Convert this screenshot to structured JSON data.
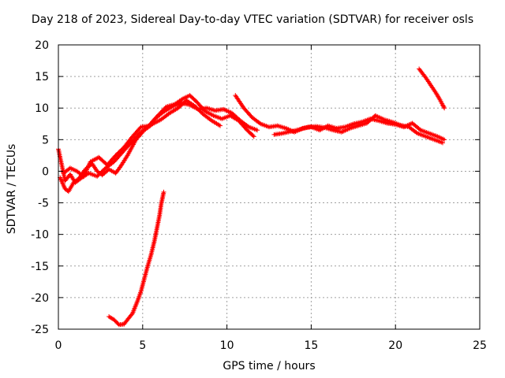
{
  "chart_data": {
    "type": "scatter",
    "title": "Day 218 of 2023, Sidereal Day-to-day VTEC variation (SDTVAR) for receiver osls",
    "xlabel": "GPS time / hours",
    "ylabel": "SDTVAR / TECUs",
    "xlim": [
      0,
      25
    ],
    "ylim": [
      -25,
      20
    ],
    "xticks": [
      0,
      5,
      10,
      15,
      20,
      25
    ],
    "yticks": [
      -25,
      -20,
      -15,
      -10,
      -5,
      0,
      5,
      10,
      15,
      20
    ],
    "grid": true,
    "marker": "+",
    "series_color": "#ff0000",
    "series": [
      {
        "name": "track-early-1",
        "points": [
          [
            0.0,
            3.5
          ],
          [
            0.2,
            1.0
          ],
          [
            0.4,
            -1.5
          ],
          [
            0.7,
            -0.5
          ],
          [
            1.0,
            -1.8
          ],
          [
            1.4,
            -1.0
          ],
          [
            1.8,
            -0.3
          ],
          [
            2.3,
            -0.8
          ],
          [
            2.8,
            0.5
          ],
          [
            3.3,
            1.5
          ],
          [
            3.8,
            3.0
          ],
          [
            4.3,
            4.5
          ],
          [
            4.8,
            6.0
          ],
          [
            5.3,
            7.0
          ],
          [
            5.8,
            8.5
          ],
          [
            6.3,
            9.5
          ],
          [
            6.8,
            10.3
          ],
          [
            7.3,
            10.8
          ],
          [
            7.8,
            10.5
          ],
          [
            8.3,
            9.8
          ],
          [
            8.8,
            10.0
          ],
          [
            9.3,
            9.6
          ],
          [
            9.8,
            9.8
          ],
          [
            10.3,
            9.2
          ],
          [
            10.8,
            8.0
          ],
          [
            11.3,
            7.0
          ],
          [
            11.8,
            6.5
          ]
        ]
      },
      {
        "name": "track-early-2",
        "points": [
          [
            0.1,
            -1.0
          ],
          [
            0.4,
            -2.8
          ],
          [
            0.6,
            -3.2
          ],
          [
            0.9,
            -1.8
          ],
          [
            1.2,
            -1.2
          ],
          [
            1.6,
            0.3
          ],
          [
            2.0,
            1.2
          ],
          [
            2.3,
            0.0
          ],
          [
            2.6,
            -0.6
          ],
          [
            3.0,
            0.3
          ],
          [
            3.4,
            -0.3
          ],
          [
            3.7,
            0.8
          ],
          [
            4.1,
            2.5
          ],
          [
            4.6,
            5.0
          ],
          [
            5.1,
            6.5
          ],
          [
            5.6,
            7.5
          ],
          [
            6.1,
            8.2
          ],
          [
            6.6,
            9.2
          ],
          [
            7.1,
            10.0
          ],
          [
            7.6,
            11.2
          ],
          [
            8.1,
            10.3
          ],
          [
            8.6,
            9.0
          ],
          [
            9.1,
            8.0
          ],
          [
            9.6,
            7.2
          ]
        ]
      },
      {
        "name": "track-early-3",
        "points": [
          [
            0.3,
            -0.3
          ],
          [
            0.7,
            0.5
          ],
          [
            1.1,
            0.0
          ],
          [
            1.5,
            -0.8
          ],
          [
            1.9,
            1.5
          ],
          [
            2.4,
            2.2
          ],
          [
            2.9,
            1.0
          ],
          [
            3.4,
            2.5
          ],
          [
            3.9,
            3.8
          ],
          [
            4.4,
            5.5
          ],
          [
            4.9,
            7.0
          ],
          [
            5.4,
            7.2
          ],
          [
            5.9,
            8.8
          ],
          [
            6.4,
            10.2
          ],
          [
            6.9,
            10.6
          ],
          [
            7.4,
            11.5
          ],
          [
            7.8,
            12.0
          ],
          [
            8.2,
            11.0
          ],
          [
            8.7,
            9.5
          ],
          [
            9.2,
            8.8
          ],
          [
            9.7,
            8.3
          ],
          [
            10.2,
            8.8
          ],
          [
            10.7,
            8.0
          ],
          [
            11.2,
            6.5
          ],
          [
            11.6,
            5.5
          ]
        ]
      },
      {
        "name": "track-midday",
        "points": [
          [
            10.5,
            12.0
          ],
          [
            11.0,
            10.0
          ],
          [
            11.5,
            8.5
          ],
          [
            12.0,
            7.5
          ],
          [
            12.5,
            7.0
          ],
          [
            13.0,
            7.2
          ],
          [
            13.5,
            6.8
          ],
          [
            14.0,
            6.2
          ],
          [
            14.5,
            6.8
          ],
          [
            15.0,
            7.0
          ],
          [
            15.5,
            6.5
          ],
          [
            16.0,
            7.2
          ],
          [
            16.5,
            6.8
          ],
          [
            17.0,
            7.0
          ],
          [
            17.5,
            7.5
          ],
          [
            18.0,
            7.8
          ],
          [
            18.5,
            8.3
          ],
          [
            19.0,
            8.0
          ],
          [
            19.5,
            7.6
          ],
          [
            20.0,
            7.4
          ],
          [
            20.5,
            7.0
          ],
          [
            21.0,
            7.6
          ],
          [
            21.5,
            6.5
          ],
          [
            22.0,
            6.0
          ],
          [
            22.5,
            5.5
          ],
          [
            22.9,
            5.0
          ]
        ]
      },
      {
        "name": "track-midday-2",
        "points": [
          [
            12.8,
            5.8
          ],
          [
            13.3,
            6.0
          ],
          [
            13.8,
            6.3
          ],
          [
            14.3,
            6.6
          ],
          [
            14.8,
            7.0
          ],
          [
            15.3,
            7.1
          ],
          [
            15.8,
            6.9
          ],
          [
            16.3,
            6.5
          ],
          [
            16.8,
            6.2
          ],
          [
            17.3,
            6.8
          ],
          [
            17.8,
            7.2
          ],
          [
            18.3,
            7.6
          ],
          [
            18.8,
            8.8
          ],
          [
            19.3,
            8.2
          ],
          [
            19.8,
            7.8
          ],
          [
            20.3,
            7.3
          ],
          [
            20.8,
            7.0
          ],
          [
            21.3,
            6.0
          ],
          [
            21.8,
            5.5
          ],
          [
            22.3,
            5.0
          ],
          [
            22.8,
            4.5
          ]
        ]
      },
      {
        "name": "track-late",
        "points": [
          [
            21.4,
            16.2
          ],
          [
            21.6,
            15.5
          ],
          [
            21.8,
            14.8
          ],
          [
            22.0,
            14.0
          ],
          [
            22.2,
            13.2
          ],
          [
            22.4,
            12.4
          ],
          [
            22.6,
            11.5
          ],
          [
            22.8,
            10.5
          ],
          [
            22.9,
            10.0
          ]
        ]
      },
      {
        "name": "track-low",
        "points": [
          [
            3.0,
            -23.0
          ],
          [
            3.3,
            -23.5
          ],
          [
            3.6,
            -24.3
          ],
          [
            3.9,
            -24.2
          ],
          [
            4.1,
            -23.5
          ],
          [
            4.4,
            -22.5
          ],
          [
            4.7,
            -20.5
          ],
          [
            4.9,
            -19.0
          ],
          [
            5.1,
            -17.0
          ],
          [
            5.3,
            -15.0
          ],
          [
            5.5,
            -13.2
          ],
          [
            5.7,
            -11.0
          ],
          [
            5.85,
            -9.0
          ],
          [
            6.0,
            -7.0
          ],
          [
            6.1,
            -5.2
          ],
          [
            6.25,
            -3.3
          ]
        ]
      }
    ]
  }
}
